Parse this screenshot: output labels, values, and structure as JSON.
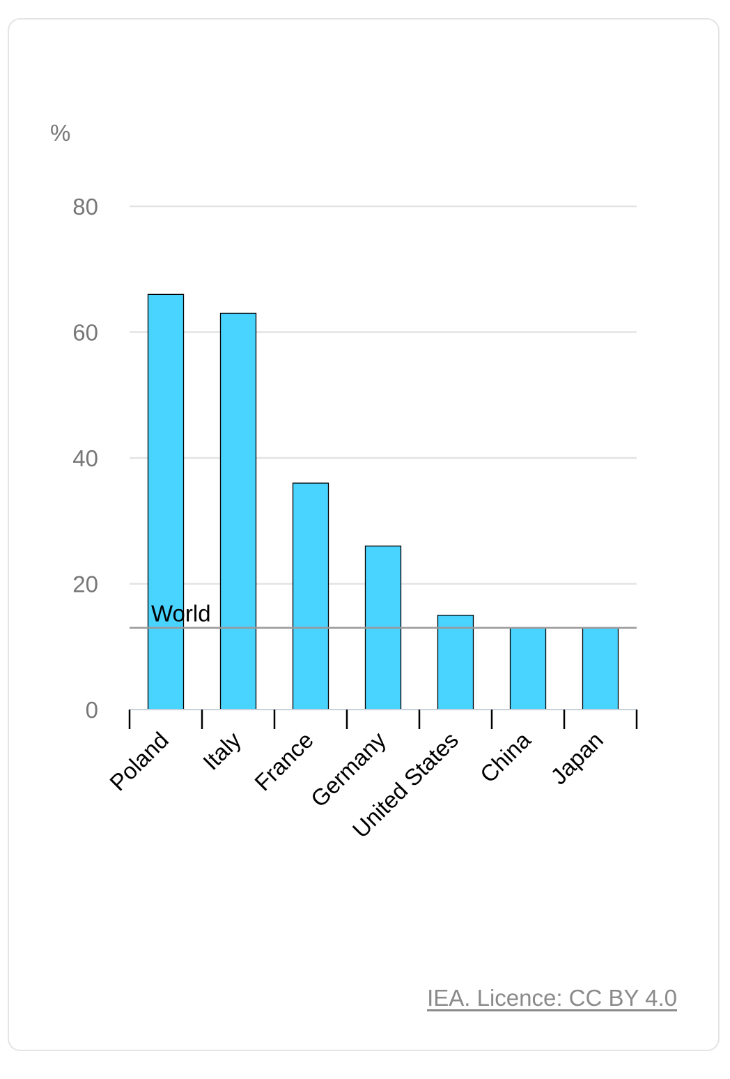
{
  "chart_data": {
    "type": "bar",
    "ylabel": "%",
    "ylim": [
      0,
      80
    ],
    "yticks": [
      "0",
      "20",
      "40",
      "60",
      "80"
    ],
    "categories": [
      "Poland",
      "Italy",
      "France",
      "Germany",
      "United States",
      "China",
      "Japan"
    ],
    "values": [
      66,
      63,
      36,
      26,
      15,
      13,
      13
    ],
    "reference_line": {
      "label": "World",
      "value": 13
    },
    "bar_color": "#49d3ff",
    "reference_line_color": "#999999",
    "grid": true
  },
  "credit": "IEA. Licence: CC BY 4.0"
}
